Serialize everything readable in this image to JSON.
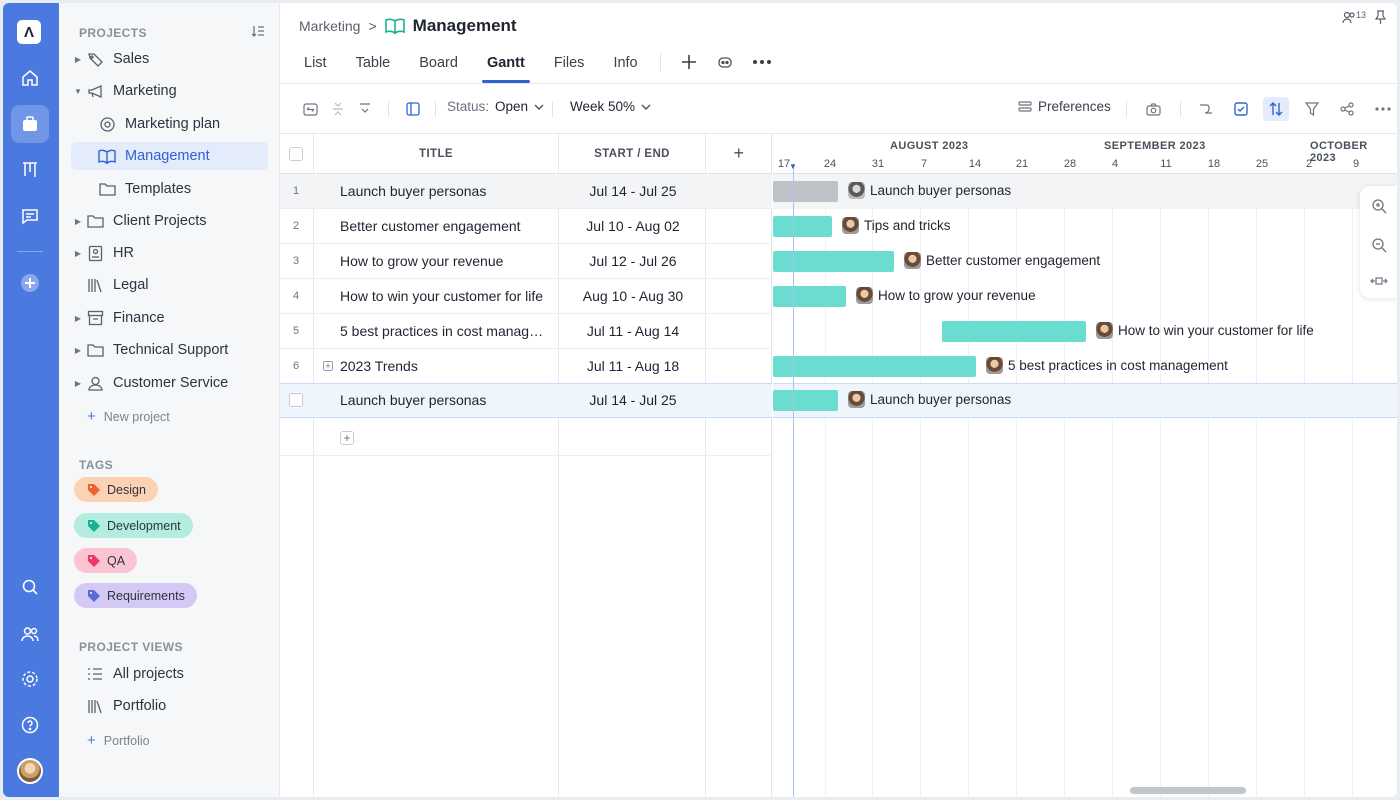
{
  "rail": {
    "logo": "Ʌ",
    "items": [
      "home-icon",
      "briefcase-icon",
      "kanban-icon",
      "chat-icon",
      "add-icon",
      "search-icon",
      "people-icon",
      "settings-icon",
      "help-icon"
    ]
  },
  "sidebar": {
    "projects_header": "PROJECTS",
    "projects": [
      {
        "label": "Sales",
        "caret": "▶"
      },
      {
        "label": "Marketing",
        "caret": "▼"
      },
      {
        "label": "Marketing plan",
        "caret": ""
      },
      {
        "label": "Management",
        "caret": ""
      },
      {
        "label": "Templates",
        "caret": ""
      },
      {
        "label": "Client Projects",
        "caret": "▶"
      },
      {
        "label": "HR",
        "caret": "▶"
      },
      {
        "label": "Legal",
        "caret": ""
      },
      {
        "label": "Finance",
        "caret": "▶"
      },
      {
        "label": "Technical Support",
        "caret": "▶"
      },
      {
        "label": "Customer Service",
        "caret": "▶"
      }
    ],
    "new_project": "New project",
    "tags_header": "TAGS",
    "tags": [
      {
        "label": "Design",
        "bg": "#fbd3b4",
        "icon_color": "#f0622d"
      },
      {
        "label": "Development",
        "bg": "#b4ecdf",
        "icon_color": "#18b293"
      },
      {
        "label": "QA",
        "bg": "#fbc4d2",
        "icon_color": "#ec3a64"
      },
      {
        "label": "Requirements",
        "bg": "#d4c9f5",
        "icon_color": "#5b6bd6"
      }
    ],
    "views_header": "PROJECT VIEWS",
    "views": [
      {
        "label": "All projects"
      },
      {
        "label": "Portfolio"
      }
    ],
    "new_portfolio": "Portfolio"
  },
  "header": {
    "breadcrumb_parent": "Marketing",
    "breadcrumb_sep": ">",
    "title": "Management",
    "members_count": "13",
    "tabs": [
      "List",
      "Table",
      "Board",
      "Gantt",
      "Files",
      "Info"
    ],
    "active_tab": "Gantt"
  },
  "toolbar": {
    "status_label": "Status:",
    "status_value": "Open",
    "scale_value": "Week 50%",
    "preferences_label": "Preferences"
  },
  "grid": {
    "columns": {
      "title": "TITLE",
      "dates": "START / END",
      "add": "+"
    },
    "rows": [
      {
        "num": "1",
        "title": "Launch buyer personas",
        "dates": "Jul 14 - Jul 25"
      },
      {
        "num": "2",
        "title": "Better customer engagement",
        "dates": "Jul 10 - Aug 02"
      },
      {
        "num": "3",
        "title": "How to grow your revenue",
        "dates": "Jul 12 - Jul 26"
      },
      {
        "num": "4",
        "title": "How to win your customer for life",
        "dates": "Aug 10 - Aug 30"
      },
      {
        "num": "5",
        "title": "5 best practices in cost management",
        "dates": "Jul 11 - Aug 14"
      },
      {
        "num": "6",
        "title": "2023 Trends",
        "dates": "Jul 11 - Aug 18"
      },
      {
        "num": "",
        "title": "Launch buyer personas",
        "dates": "Jul 14 - Jul 25"
      }
    ],
    "add_row": "+"
  },
  "gantt": {
    "months": [
      "AUGUST 2023",
      "SEPTEMBER 2023",
      "OCTOBER 2023"
    ],
    "days": [
      "17",
      "24",
      "31",
      "7",
      "14",
      "21",
      "28",
      "4",
      "11",
      "18",
      "25",
      "2",
      "9"
    ],
    "bar_labels": [
      "Launch buyer personas",
      "Tips and tricks",
      "Better customer engagement",
      "How to grow your revenue",
      "How to win your customer for life",
      "5 best practices in cost management",
      "Launch buyer personas"
    ]
  }
}
